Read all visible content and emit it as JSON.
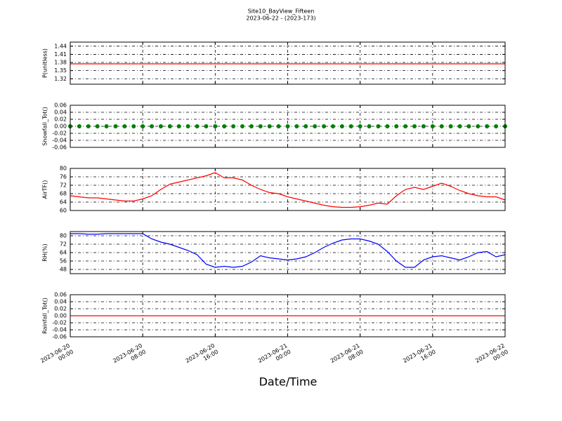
{
  "chart_data": {
    "type": "line",
    "title": "Site10_BayView_Fifteen",
    "subtitle": "2023-06-22 - (2023-173)",
    "xlabel": "Date/Time",
    "x": [
      "2023-06-20 00:00",
      "2023-06-20 01:00",
      "2023-06-20 02:00",
      "2023-06-20 03:00",
      "2023-06-20 04:00",
      "2023-06-20 05:00",
      "2023-06-20 06:00",
      "2023-06-20 07:00",
      "2023-06-20 08:00",
      "2023-06-20 09:00",
      "2023-06-20 10:00",
      "2023-06-20 11:00",
      "2023-06-20 12:00",
      "2023-06-20 13:00",
      "2023-06-20 14:00",
      "2023-06-20 15:00",
      "2023-06-20 16:00",
      "2023-06-20 17:00",
      "2023-06-20 18:00",
      "2023-06-20 19:00",
      "2023-06-20 20:00",
      "2023-06-20 21:00",
      "2023-06-20 22:00",
      "2023-06-20 23:00",
      "2023-06-21 00:00",
      "2023-06-21 01:00",
      "2023-06-21 02:00",
      "2023-06-21 03:00",
      "2023-06-21 04:00",
      "2023-06-21 05:00",
      "2023-06-21 06:00",
      "2023-06-21 07:00",
      "2023-06-21 08:00",
      "2023-06-21 09:00",
      "2023-06-21 10:00",
      "2023-06-21 11:00",
      "2023-06-21 12:00",
      "2023-06-21 13:00",
      "2023-06-21 14:00",
      "2023-06-21 15:00",
      "2023-06-21 16:00",
      "2023-06-21 17:00",
      "2023-06-21 18:00",
      "2023-06-21 19:00",
      "2023-06-21 20:00",
      "2023-06-21 21:00",
      "2023-06-21 22:00",
      "2023-06-21 23:00",
      "2023-06-22 00:00"
    ],
    "xlim": [
      "2023-06-20 00:00",
      "2023-06-22 00:00"
    ],
    "xticks": [
      "2023-06-20 00:00",
      "2023-06-20 08:00",
      "2023-06-20 16:00",
      "2023-06-21 00:00",
      "2023-06-21 08:00",
      "2023-06-21 16:00",
      "2023-06-22 00:00"
    ],
    "grid": true,
    "panels": [
      {
        "ylabel": "P(unitless)",
        "ylim": [
          1.3,
          1.455
        ],
        "yticks": [
          1.32,
          1.35,
          1.38,
          1.41,
          1.44
        ],
        "color": "#ff0000",
        "marker": "none",
        "values": [
          1.375,
          1.375,
          1.375,
          1.375,
          1.375,
          1.375,
          1.375,
          1.375,
          1.375,
          1.375,
          1.375,
          1.375,
          1.375,
          1.375,
          1.375,
          1.375,
          1.375,
          1.375,
          1.375,
          1.375,
          1.375,
          1.375,
          1.375,
          1.375,
          1.375,
          1.375,
          1.375,
          1.375,
          1.375,
          1.375,
          1.375,
          1.375,
          1.375,
          1.375,
          1.375,
          1.375,
          1.375,
          1.375,
          1.375,
          1.375,
          1.375,
          1.375,
          1.375,
          1.375,
          1.375,
          1.375,
          1.375,
          1.375,
          1.375
        ]
      },
      {
        "ylabel": "Snowfall_Tot()",
        "ylim": [
          -0.06,
          0.06
        ],
        "yticks": [
          -0.06,
          -0.04,
          -0.02,
          {
            "value": 0,
            "label": "0.00"
          },
          0.02,
          0.04,
          0.06
        ],
        "color": "#008000",
        "marker": "o",
        "values": [
          0,
          0,
          0,
          0,
          0,
          0,
          0,
          0,
          0,
          0,
          0,
          0,
          0,
          0,
          0,
          0,
          0,
          0,
          0,
          0,
          0,
          0,
          0,
          0,
          0,
          0,
          0,
          0,
          0,
          0,
          0,
          0,
          0,
          0,
          0,
          0,
          0,
          0,
          0,
          0,
          0,
          0,
          0,
          0,
          0,
          0,
          0,
          0,
          0
        ]
      },
      {
        "ylabel": "AirTF()",
        "ylim": [
          60,
          80
        ],
        "yticks": [
          60,
          64,
          68,
          72,
          76,
          80
        ],
        "color": "#ff0000",
        "marker": "none",
        "values": [
          67,
          66.5,
          66,
          66,
          65.5,
          65,
          64.5,
          64.5,
          65.5,
          67,
          70,
          72.5,
          73.5,
          74.5,
          75.5,
          76.5,
          78,
          75.5,
          75.5,
          74.5,
          72,
          70,
          68.5,
          68,
          66.5,
          65.5,
          64.5,
          63.5,
          62.5,
          61.8,
          61.5,
          61.5,
          61.8,
          62.5,
          63.5,
          63,
          67,
          70,
          71,
          70,
          71.5,
          73,
          71.5,
          69.5,
          68,
          67,
          66.5,
          66.5,
          65
        ]
      },
      {
        "ylabel": "RH(%)",
        "ylim": [
          44,
          84
        ],
        "yticks": [
          48,
          56,
          64,
          72,
          80
        ],
        "color": "#0000ff",
        "marker": "none",
        "values": [
          82,
          82,
          81.5,
          81.5,
          82,
          82,
          82,
          82,
          82,
          77,
          74,
          72,
          69,
          66,
          62,
          53,
          50,
          51,
          50,
          51,
          55,
          61,
          59,
          58,
          57,
          58,
          60,
          64,
          69,
          73,
          76,
          77,
          77,
          75,
          72,
          65,
          56,
          50,
          50,
          57,
          60,
          61,
          59,
          57,
          60,
          64,
          65,
          60,
          62
        ]
      },
      {
        "ylabel": "Rainfall_Tot()",
        "ylim": [
          -0.06,
          0.06
        ],
        "yticks": [
          -0.06,
          -0.04,
          -0.02,
          {
            "value": 0,
            "label": "0.00"
          },
          0.02,
          0.04,
          0.06
        ],
        "color": "#ff0000",
        "marker": "none",
        "values": [
          0,
          0,
          0,
          0,
          0,
          0,
          0,
          0,
          0,
          0,
          0,
          0,
          0,
          0,
          0,
          0,
          0,
          0,
          0,
          0,
          0,
          0,
          0,
          0,
          0,
          0,
          0,
          0,
          0,
          0,
          0,
          0,
          0,
          0,
          0,
          0,
          0,
          0,
          0,
          0,
          0,
          0,
          0,
          0,
          0,
          0,
          0,
          0,
          0
        ]
      }
    ]
  }
}
